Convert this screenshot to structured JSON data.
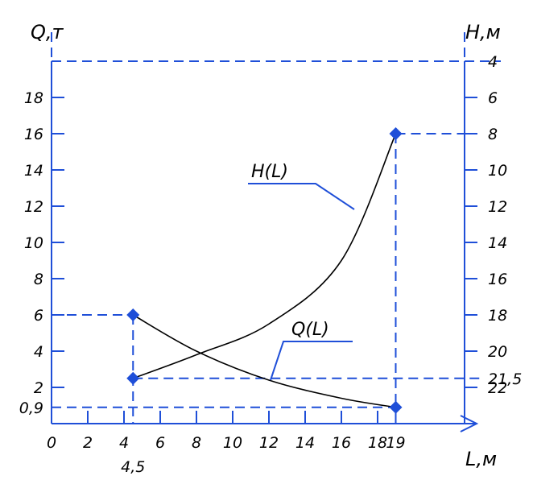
{
  "chart_data": {
    "type": "line",
    "x_axis": {
      "label": "L,м",
      "ticks": [
        "0",
        "2",
        "4",
        "4,5",
        "6",
        "8",
        "10",
        "12",
        "14",
        "16",
        "18",
        "19"
      ],
      "tick_values": [
        0,
        2,
        4,
        4.5,
        6,
        8,
        10,
        12,
        14,
        16,
        18,
        19
      ],
      "range": [
        0,
        24
      ]
    },
    "y_left_axis": {
      "label": "Q,т",
      "ticks": [
        "0,9",
        "2",
        "4",
        "6",
        "8",
        "10",
        "12",
        "14",
        "16",
        "18"
      ],
      "tick_values": [
        0.9,
        2,
        4,
        6,
        8,
        10,
        12,
        14,
        16,
        18
      ],
      "range": [
        0,
        20
      ]
    },
    "y_right_axis": {
      "label": "H,м",
      "ticks": [
        "4",
        "6",
        "8",
        "10",
        "12",
        "14",
        "16",
        "18",
        "20",
        "21,5",
        "22"
      ],
      "tick_values": [
        4,
        6,
        8,
        10,
        12,
        14,
        16,
        18,
        20,
        21.5,
        22
      ]
    },
    "series": [
      {
        "name": "Q(L)",
        "points": [
          {
            "L": 4.5,
            "Q": 6
          },
          {
            "L": 8,
            "Q": 4
          },
          {
            "L": 12,
            "Q": 2.4
          },
          {
            "L": 16,
            "Q": 1.4
          },
          {
            "L": 19,
            "Q": 0.9
          }
        ]
      },
      {
        "name": "H(L)",
        "points": [
          {
            "L": 4.5,
            "H": 21.5
          },
          {
            "L": 8,
            "H": 20.2
          },
          {
            "L": 12,
            "H": 18.5
          },
          {
            "L": 16,
            "H": 15
          },
          {
            "L": 19,
            "H": 8
          }
        ]
      }
    ],
    "markers": [
      {
        "L": 4.5,
        "Q": 6
      },
      {
        "L": 4.5,
        "H": 21.5
      },
      {
        "L": 19,
        "H": 8
      },
      {
        "L": 19,
        "Q": 0.9
      }
    ]
  }
}
